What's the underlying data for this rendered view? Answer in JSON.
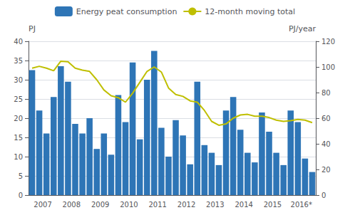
{
  "chart_data": {
    "type": "bar",
    "y_label": "PJ",
    "y2_label": "PJ/year",
    "categories": [
      "2007",
      null,
      null,
      null,
      "2008",
      null,
      null,
      null,
      "2009",
      null,
      null,
      null,
      "2010",
      null,
      null,
      null,
      "2011",
      null,
      null,
      null,
      "2012",
      null,
      null,
      null,
      "2013",
      null,
      null,
      null,
      "2014",
      null,
      null,
      null,
      "2015",
      null,
      null,
      null,
      "2016*",
      null,
      null,
      null
    ],
    "series": [
      {
        "name": "Energy peat consumption",
        "type": "bar",
        "color": "#2E75B6",
        "values": [
          32.5,
          22.0,
          16.0,
          25.5,
          33.5,
          29.5,
          18.5,
          16.0,
          20.0,
          12.0,
          16.0,
          10.5,
          26.0,
          19.0,
          34.5,
          14.5,
          30.0,
          37.5,
          17.5,
          10.0,
          19.5,
          15.5,
          8.0,
          29.5,
          13.0,
          11.0,
          7.8,
          22.0,
          25.5,
          17.0,
          11.0,
          8.5,
          21.5,
          16.5,
          11.0,
          7.8,
          22.0,
          19.0,
          9.5,
          6.0
        ]
      },
      {
        "name": "12-month moving total",
        "type": "line",
        "color": "#BFBF00",
        "axis": "y2",
        "values": [
          99.0,
          100.5,
          99.0,
          97.0,
          104.5,
          104.0,
          99.0,
          97.5,
          96.5,
          90.0,
          82.0,
          77.5,
          76.0,
          72.5,
          79.5,
          88.0,
          96.5,
          100.0,
          96.0,
          83.5,
          78.5,
          77.0,
          73.5,
          72.5,
          66.0,
          57.5,
          54.5,
          55.5,
          60.0,
          62.5,
          63.0,
          61.5,
          61.5,
          60.5,
          58.5,
          57.5,
          58.0,
          59.0,
          58.5,
          56.5
        ]
      }
    ],
    "ylim": [
      0,
      40
    ],
    "yticks": [
      0,
      5,
      10,
      15,
      20,
      25,
      30,
      35,
      40
    ],
    "y2lim": [
      0,
      120
    ],
    "y2ticks": [
      0,
      20,
      40,
      60,
      80,
      100,
      120
    ],
    "grid": true,
    "legend": "top"
  }
}
